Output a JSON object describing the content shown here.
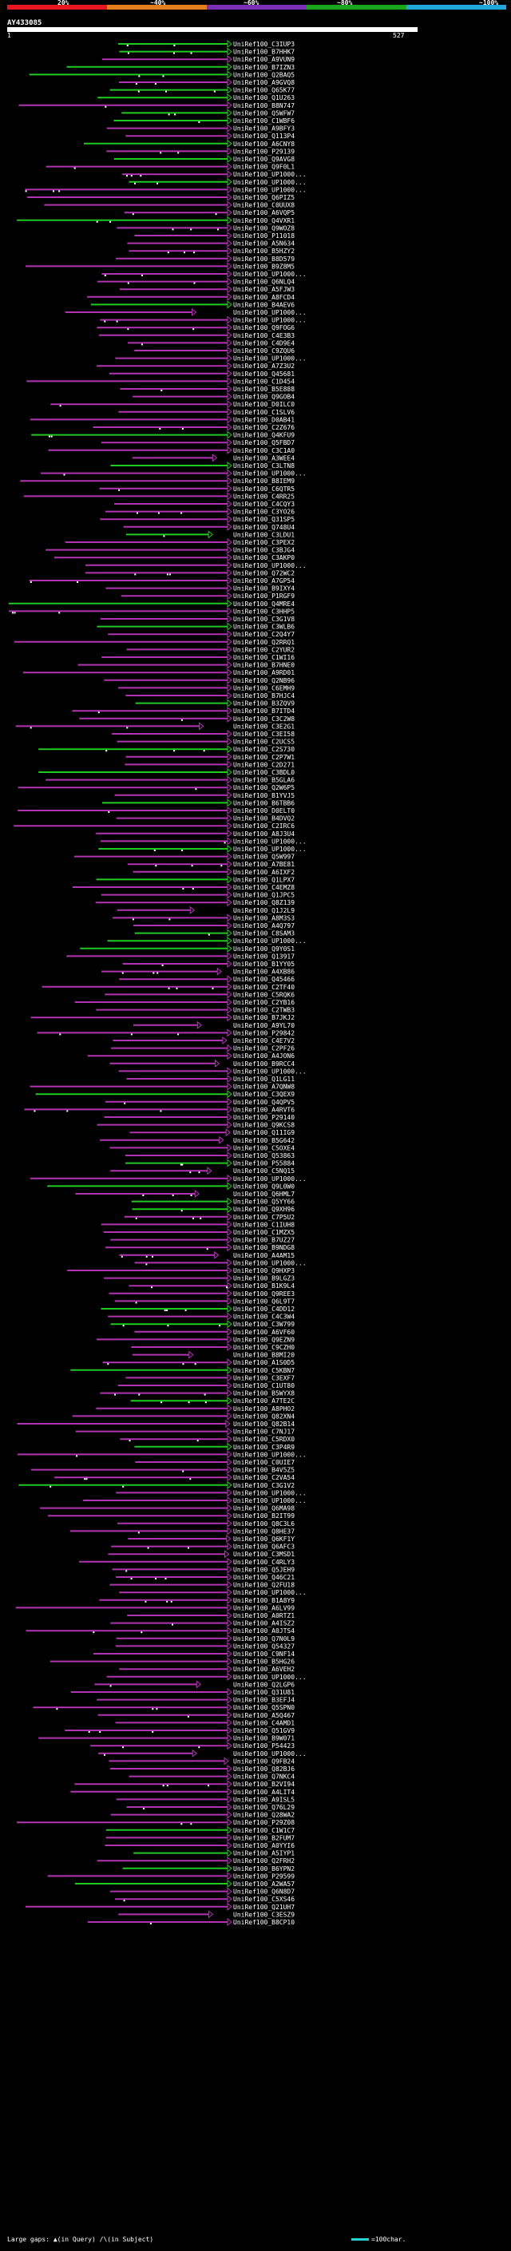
{
  "scale": {
    "labels": [
      "20%",
      "~40%",
      "~60%",
      "~80%",
      "~100%"
    ],
    "colors": [
      "#e6171f",
      "#e57d1d",
      "#7b2fb5",
      "#1ca51c",
      "#1fa8d9"
    ]
  },
  "query": {
    "id": "AY433085",
    "start": "1",
    "end": "527"
  },
  "hit_colors": {
    "green": "#22c922",
    "magenta": "#b234b2",
    "gap": "#ffffff"
  },
  "hit_labels": [
    "UniRef100_C3IUP3",
    "UniRef100_B7HHK7",
    "UniRef100_A9VUN9",
    "UniRef100_B7IZN3",
    "UniRef100_Q2BAQ5",
    "UniRef100_A9GVQ8",
    "UniRef100_Q65K77",
    "UniRef100_Q1U263",
    "UniRef100_B8N747",
    "UniRef100_Q5WFW7",
    "UniRef100_C1WBF6",
    "UniRef100_A9BFY3",
    "UniRef100_Q113P4",
    "UniRef100_A6CNY8",
    "UniRef100_P29139",
    "UniRef100_Q9AVG8",
    "UniRef100_Q9F0L1",
    "UniRef100_UP1000...",
    "UniRef100_UP1000...",
    "UniRef100_UP1000...",
    "UniRef100_Q6PIZ5",
    "UniRef100_C0UUX8",
    "UniRef100_A6VQP5",
    "UniRef100_Q4VXR1",
    "UniRef100_Q9WOZ8",
    "UniRef100_P11018",
    "UniRef100_A5N634",
    "UniRef100_B5HZY2",
    "UniRef100_B8D579",
    "UniRef100_B9Z8M5",
    "UniRef100_UP1000...",
    "UniRef100_Q6NLQ4",
    "UniRef100_A5FJW3",
    "UniRef100_A8FCD4",
    "UniRef100_B4AEV6",
    "UniRef100_UP1000...",
    "UniRef100_UP1000...",
    "UniRef100_Q9FOG6",
    "UniRef100_C4E3B3",
    "UniRef100_C4D9E4",
    "UniRef100_C9ZQU6",
    "UniRef100_UP1000...",
    "UniRef100_A7Z3U2",
    "UniRef100_Q45681",
    "UniRef100_C1D454",
    "UniRef100_B5E888",
    "UniRef100_Q9GOB4",
    "UniRef100_D0ILC0",
    "UniRef100_C1SLV6",
    "UniRef100_D0AB41",
    "UniRef100_C2Z676",
    "UniRef100_Q4KFU9",
    "UniRef100_Q5FBD7",
    "UniRef100_C3C1A0",
    "UniRef100_A3WEE4",
    "UniRef100_C3LTN8",
    "UniRef100_UP1000...",
    "UniRef100_B8IEM9",
    "UniRef100_C6QTR5",
    "UniRef100_C4RR25",
    "UniRef100_C4CQY3",
    "UniRef100_C3YO26",
    "UniRef100_Q31SP5",
    "UniRef100_Q748U4",
    "UniRef100_C3LDU1",
    "UniRef100_C3PEX2",
    "UniRef100_C3BJG4",
    "UniRef100_C3AKP0",
    "UniRef100_UP1000...",
    "UniRef100_Q72WC2",
    "UniRef100_A7GP54",
    "UniRef100_B9IXY4",
    "UniRef100_P1RGF9",
    "UniRef100_Q4MRE4",
    "UniRef100_C3HHP5",
    "UniRef100_C3G1V8",
    "UniRef100_C3WLB6",
    "UniRef100_C2Q4Y7",
    "UniRef100_Q2RRQ1",
    "UniRef100_C2YUR2",
    "UniRef100_C1WI16",
    "UniRef100_B7HNE0",
    "UniRef100_A9RD01",
    "UniRef100_Q2NB96",
    "UniRef100_C6EMH9",
    "UniRef100_B7HJC4",
    "UniRef100_B3ZQV9",
    "UniRef100_B7ITD4",
    "UniRef100_C3C2W8",
    "UniRef100_C3E2G1",
    "UniRef100_C3EI58",
    "UniRef100_C2UCS5",
    "UniRef100_C2S730",
    "UniRef100_C2P7W1",
    "UniRef100_C2D271",
    "UniRef100_C3BDL0",
    "UniRef100_B5GLA6",
    "UniRef100_Q2W6P5",
    "UniRef100_B1YVJ5",
    "UniRef100_B6TBB6",
    "UniRef100_D0ELT0",
    "UniRef100_B4DVQ2",
    "UniRef100_C2IRC6",
    "UniRef100_A8J3U4",
    "UniRef100_UP1000...",
    "UniRef100_UP1000...",
    "UniRef100_Q5W997",
    "UniRef100_A7BE81",
    "UniRef100_A6IXF2",
    "UniRef100_Q1LPX7",
    "UniRef100_C4EMZ8",
    "UniRef100_Q1JPC5",
    "UniRef100_Q8Z139",
    "UniRef100_Q1J2L9",
    "UniRef100_A8M3S3",
    "UniRef100_A4Q797",
    "UniRef100_C8SAM3",
    "UniRef100_UP1000...",
    "UniRef100_Q9Y0S1",
    "UniRef100_Q13917",
    "UniRef100_B1YY05",
    "UniRef100_A4XB86",
    "UniRef100_Q45466",
    "UniRef100_C2TF40",
    "UniRef100_C5RQK6",
    "UniRef100_C2YB16",
    "UniRef100_C2TWB3",
    "UniRef100_B7JKJ2",
    "UniRef100_A9YL70",
    "UniRef100_P29842",
    "UniRef100_C4E7V2",
    "UniRef100_C2PF26",
    "UniRef100_A4JON6",
    "UniRef100_B9RCC4",
    "UniRef100_UP1000...",
    "UniRef100_Q1LG11",
    "UniRef100_A7QNW8",
    "UniRef100_C3QEX9",
    "UniRef100_Q4QPV5",
    "UniRef100_A4RVT6",
    "UniRef100_P29140",
    "UniRef100_Q9KCS8",
    "UniRef100_Q11IG9",
    "UniRef100_B5G642",
    "UniRef100_C5OXE4",
    "UniRef100_Q53863",
    "UniRef100_P55884",
    "UniRef100_C5NQ15",
    "UniRef100_UP1000...",
    "UniRef100_Q9L0W0",
    "UniRef100_Q6HML7",
    "UniRef100_Q5YY66",
    "UniRef100_Q9XH96",
    "UniRef100_C7P5U2",
    "UniRef100_C1IUH8",
    "UniRef100_C1MZX5",
    "UniRef100_B7UZ27",
    "UniRef100_B9NDG8",
    "UniRef100_A4AM15",
    "UniRef100_UP1000...",
    "UniRef100_Q9HXP3",
    "UniRef100_B9LGZ3",
    "UniRef100_B1K9L4",
    "UniRef100_Q9REE3",
    "UniRef100_Q6L9T7",
    "UniRef100_C4DD12",
    "UniRef100_C4C3W4",
    "UniRef100_C3W799",
    "UniRef100_A6VF60",
    "UniRef100_Q9EZN9",
    "UniRef100_C9CZH0",
    "UniRef100_B8MI20",
    "UniRef100_A1S0D5",
    "UniRef100_C5KBN7",
    "UniRef100_C3EXF7",
    "UniRef100_C1UT80",
    "UniRef100_B5WYX8",
    "UniRef100_A7TE2C",
    "UniRef100_A8PHO2",
    "UniRef100_Q82XN4",
    "UniRef100_Q82B14",
    "UniRef100_C7NJ17",
    "UniRef100_C5RDX0",
    "UniRef100_C3P4R9",
    "UniRef100_UP1000...",
    "UniRef100_C0UIE7",
    "UniRef100_B4V5Z5",
    "UniRef100_C2VA54",
    "UniRef100_C3G1V2",
    "UniRef100_UP1000...",
    "UniRef100_UP1000...",
    "UniRef100_Q6MA98",
    "UniRef100_B2IT99",
    "UniRef100_Q8C3L6",
    "UniRef100_Q8HE37",
    "UniRef100_Q6KF1Y",
    "UniRef100_Q6AFC3",
    "UniRef100_C3MSD1",
    "UniRef100_C4RLY3",
    "UniRef100_Q5JEH9",
    "UniRef100_Q46C21",
    "UniRef100_Q2FU18",
    "UniRef100_UP1000...",
    "UniRef100_B1A8Y9",
    "UniRef100_A6LV99",
    "UniRef100_A0RTZ1",
    "UniRef100_A4ISZ2",
    "UniRef100_A0JTS4",
    "UniRef100_Q7N0L9",
    "UniRef100_Q54327",
    "UniRef100_C9NF14",
    "UniRef100_B5HG26",
    "UniRef100_A6VEH2",
    "UniRef100_UP1000...",
    "UniRef100_Q2LGP6",
    "UniRef100_Q31U81",
    "UniRef100_B3EFJ4",
    "UniRef100_Q5SPN0",
    "UniRef100_A5Q467",
    "UniRef100_C4AMD1",
    "UniRef100_Q51GV9",
    "UniRef100_B9W071",
    "UniRef100_P54423",
    "UniRef100_UP1000...",
    "UniRef100_Q9FB24",
    "UniRef100_Q82BJ6",
    "UniRef100_Q7NKC4",
    "UniRef100_B2VI94",
    "UniRef100_A4LIT4",
    "UniRef100_A9ISL5",
    "UniRef100_Q76L29",
    "UniRef100_Q28WA2",
    "UniRef100_P29Z08",
    "UniRef100_C1W1C7",
    "UniRef100_B2FUM7",
    "UniRef100_A0YYI6",
    "UniRef100_A5IYP1",
    "UniRef100_Q2FRH2",
    "UniRef100_B6YPN2",
    "UniRef100_P29599",
    "UniRef100_A2WA57",
    "UniRef100_Q6N8D7",
    "UniRef100_C5XS46",
    "UniRef100_Q21UH7",
    "UniRef100_C3ESZ9",
    "UniRef100_B8CP10"
  ],
  "footer": {
    "prefix": "Large gaps:",
    "query_gap_glyph": "▲",
    "query_gap_text": "(in Query)",
    "subject_gap_glyph": "/\\",
    "subject_gap_text": "(in Subject)",
    "legend": "=100char."
  }
}
